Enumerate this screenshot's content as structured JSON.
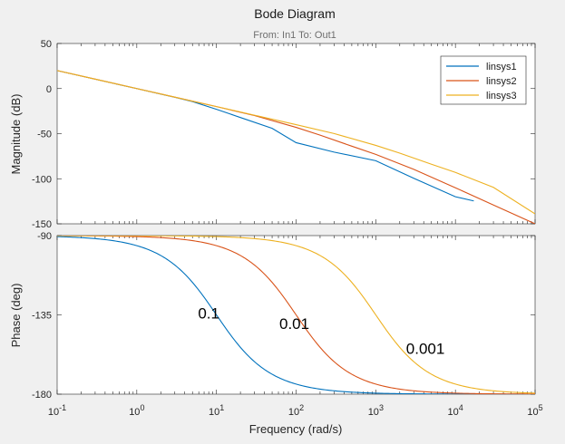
{
  "chart_data": [
    {
      "type": "line",
      "title": "Bode Diagram",
      "subtitle": "From: In1  To: Out1",
      "xlabel": "",
      "ylabel": "Magnitude (dB)",
      "xscale": "log",
      "xlim": [
        0.1,
        100000
      ],
      "ylim": [
        -150,
        50
      ],
      "yticks": [
        50,
        0,
        -50,
        -100,
        -150
      ],
      "yticklabels": [
        "50",
        "0",
        "-50",
        "-100",
        "-150"
      ],
      "grid": false,
      "legend": {
        "placement": "top-right",
        "entries": [
          "linsys1",
          "linsys2",
          "linsys3"
        ]
      },
      "series": [
        {
          "name": "linsys1",
          "color": "#0072bd",
          "x": [
            0.1,
            0.3,
            1,
            2,
            3,
            5,
            10,
            20,
            50,
            100,
            300,
            1000,
            3000,
            10000,
            17000
          ],
          "y": [
            20,
            10.4,
            0,
            -6.1,
            -9.7,
            -14.4,
            -23,
            -32.1,
            -44.1,
            -60,
            -70.5,
            -80,
            -99.5,
            -120,
            -124.6
          ]
        },
        {
          "name": "linsys2",
          "color": "#d95319",
          "x": [
            0.1,
            0.3,
            1,
            3,
            10,
            30,
            100,
            200,
            500,
            1000,
            3000,
            10000,
            30000,
            100000
          ],
          "y": [
            20,
            10.5,
            0,
            -9.5,
            -20,
            -29.9,
            -43,
            -51.6,
            -63.9,
            -73,
            -89.6,
            -110,
            -129.1,
            -150
          ]
        },
        {
          "name": "linsys3",
          "color": "#edb120",
          "x": [
            0.1,
            0.3,
            1,
            3,
            10,
            30,
            100,
            300,
            1000,
            2000,
            5000,
            10000,
            30000,
            100000
          ],
          "y": [
            20,
            10.5,
            0,
            -9.5,
            -20,
            -29.5,
            -40,
            -49.9,
            -63,
            -71.6,
            -83.9,
            -93,
            -109.6,
            -139
          ]
        }
      ]
    },
    {
      "type": "line",
      "title": "",
      "xlabel": "Frequency  (rad/s)",
      "ylabel": "Phase (deg)",
      "xscale": "log",
      "xlim": [
        0.1,
        100000
      ],
      "xticklabels": [
        {
          "base": "10",
          "exp": "-1"
        },
        {
          "base": "10",
          "exp": "0"
        },
        {
          "base": "10",
          "exp": "1"
        },
        {
          "base": "10",
          "exp": "2"
        },
        {
          "base": "10",
          "exp": "3"
        },
        {
          "base": "10",
          "exp": "4"
        },
        {
          "base": "10",
          "exp": "5"
        }
      ],
      "ylim": [
        -180,
        -90
      ],
      "yticks": [
        -90,
        -135,
        -180
      ],
      "yticklabels": [
        "-90",
        "-135",
        "-180"
      ],
      "grid": false,
      "annotations": [
        {
          "text": "0.1",
          "x": 8,
          "y": -137
        },
        {
          "text": "0.01",
          "x": 95,
          "y": -143
        },
        {
          "text": "0.001",
          "x": 4200,
          "y": -157
        }
      ],
      "series": [
        {
          "name": "linsys1",
          "color": "#0072bd",
          "tau": 0.1
        },
        {
          "name": "linsys2",
          "color": "#d95319",
          "tau": 0.01
        },
        {
          "name": "linsys3",
          "color": "#edb120",
          "tau": 0.001
        }
      ]
    }
  ]
}
